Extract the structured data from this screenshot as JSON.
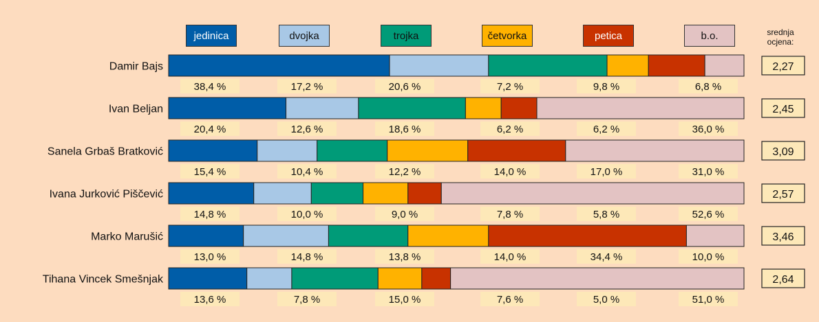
{
  "legend": [
    {
      "label": "jedinica",
      "color": "#005da8",
      "text_color": "#ffffff"
    },
    {
      "label": "dvojka",
      "color": "#a8c8e6",
      "text_color": "#111111"
    },
    {
      "label": "trojka",
      "color": "#009b78",
      "text_color": "#111111"
    },
    {
      "label": "četvorka",
      "color": "#ffb200",
      "text_color": "#111111"
    },
    {
      "label": "petica",
      "color": "#c83200",
      "text_color": "#ffffff"
    },
    {
      "label": "b.o.",
      "color": "#e3c3c3",
      "text_color": "#111111"
    }
  ],
  "avg_title": "srednja ocjena:",
  "chart_data": {
    "type": "bar",
    "stacked": true,
    "orientation": "horizontal",
    "percent_of_total": true,
    "categories": [
      "Damir Bajs",
      "Ivan Beljan",
      "Sanela Grbaš Bratković",
      "Ivana Jurković Piščević",
      "Marko Marušić",
      "Tihana Vincek Smešnjak"
    ],
    "series": [
      {
        "name": "jedinica",
        "color": "#005da8",
        "values": [
          38.4,
          20.4,
          15.4,
          14.8,
          13.0,
          13.6
        ],
        "labels": [
          "38,4 %",
          "20,4 %",
          "15,4 %",
          "14,8 %",
          "13,0 %",
          "13,6 %"
        ]
      },
      {
        "name": "dvojka",
        "color": "#a8c8e6",
        "values": [
          17.2,
          12.6,
          10.4,
          10.0,
          14.8,
          7.8
        ],
        "labels": [
          "17,2 %",
          "12,6 %",
          "10,4 %",
          "10,0 %",
          "14,8 %",
          "7,8 %"
        ]
      },
      {
        "name": "trojka",
        "color": "#009b78",
        "values": [
          20.6,
          18.6,
          12.2,
          9.0,
          13.8,
          15.0
        ],
        "labels": [
          "20,6 %",
          "18,6 %",
          "12,2 %",
          "9,0 %",
          "13,8 %",
          "15,0 %"
        ]
      },
      {
        "name": "četvorka",
        "color": "#ffb200",
        "values": [
          7.2,
          6.2,
          14.0,
          7.8,
          14.0,
          7.6
        ],
        "labels": [
          "7,2 %",
          "6,2 %",
          "14,0 %",
          "7,8 %",
          "14,0 %",
          "7,6 %"
        ]
      },
      {
        "name": "petica",
        "color": "#c83200",
        "values": [
          9.8,
          6.2,
          17.0,
          5.8,
          34.4,
          5.0
        ],
        "labels": [
          "9,8 %",
          "6,2 %",
          "17,0 %",
          "5,8 %",
          "34,4 %",
          "5,0 %"
        ]
      },
      {
        "name": "b.o.",
        "color": "#e3c3c3",
        "values": [
          6.8,
          36.0,
          31.0,
          52.6,
          10.0,
          51.0
        ],
        "labels": [
          "6,8 %",
          "36,0 %",
          "31,0 %",
          "52,6 %",
          "10,0 %",
          "51,0 %"
        ]
      }
    ],
    "averages": [
      "2,27",
      "2,45",
      "3,09",
      "2,57",
      "3,46",
      "2,64"
    ],
    "xlim": [
      0,
      100
    ]
  }
}
